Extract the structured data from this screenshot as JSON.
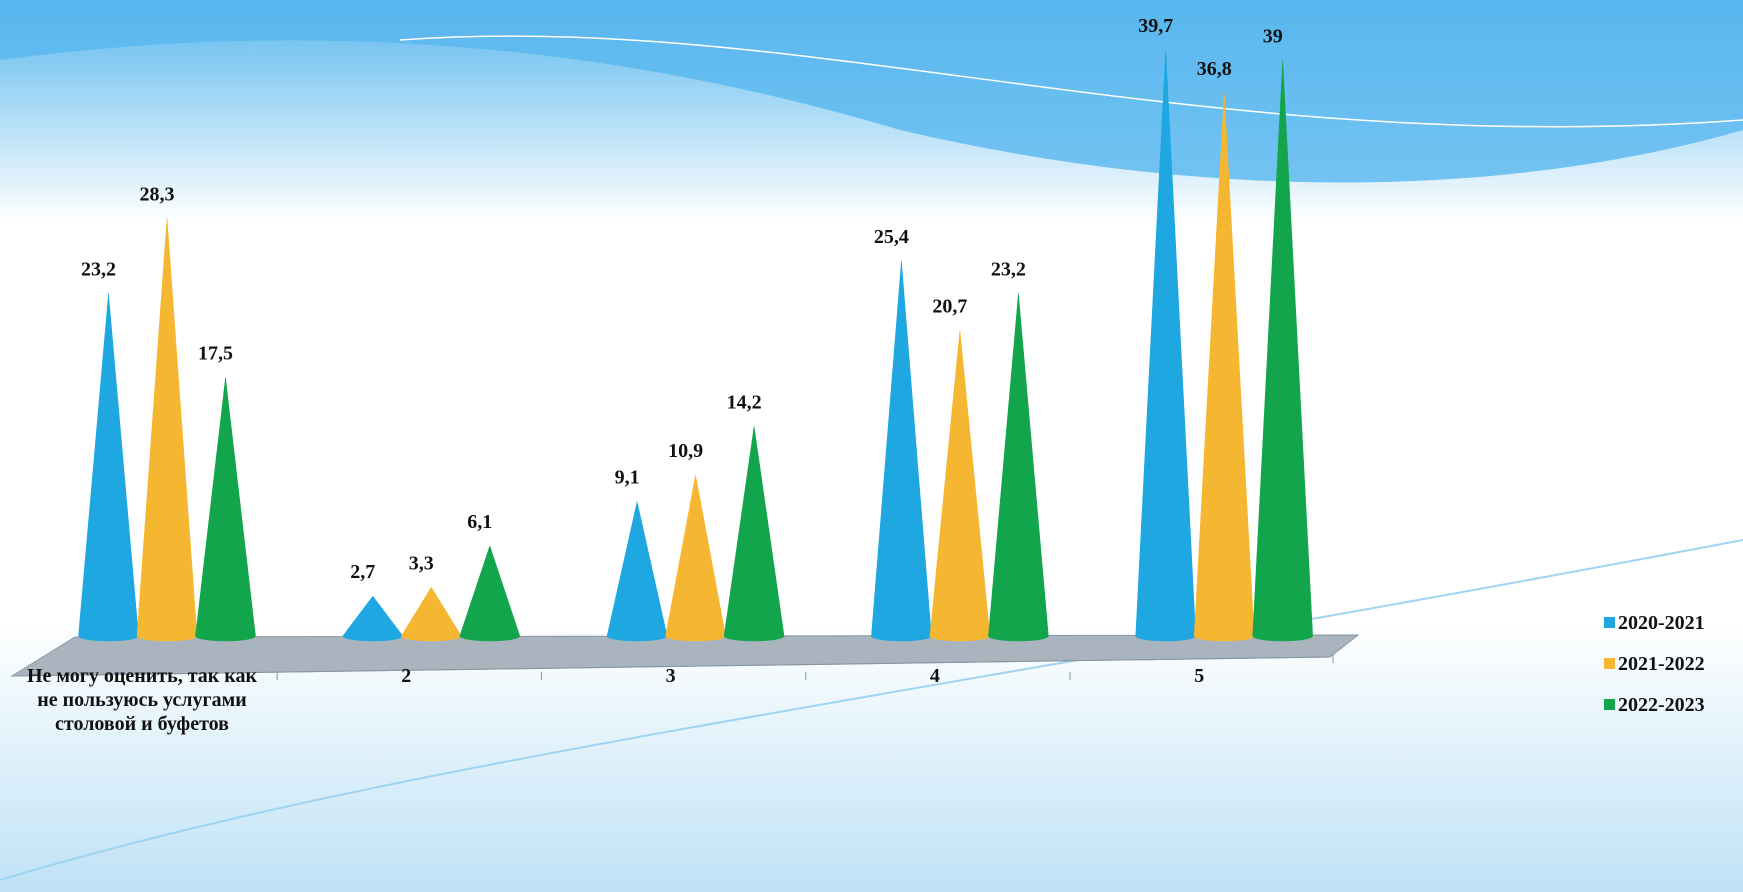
{
  "chart_data": {
    "type": "cone",
    "categories": [
      "Не могу оценить, так как не пользуюсь услугами столовой и буфетов",
      "2",
      "3",
      "4",
      "5"
    ],
    "series": [
      {
        "name": "2020-2021",
        "color": "#1ea7e0",
        "values": [
          23.2,
          2.7,
          9.1,
          25.4,
          39.7
        ],
        "value_labels": [
          "23,2",
          "2,7",
          "9,1",
          "25,4",
          "39,7"
        ]
      },
      {
        "name": "2021-2022",
        "color": "#f5b731",
        "values": [
          28.3,
          3.3,
          10.9,
          20.7,
          36.8
        ],
        "value_labels": [
          "28,3",
          "3,3",
          "10,9",
          "20,7",
          "36,8"
        ]
      },
      {
        "name": "2022-2023",
        "color": "#13a54c",
        "values": [
          17.5,
          6.1,
          14.2,
          23.2,
          39
        ],
        "value_labels": [
          "17,5",
          "6,1",
          "14,2",
          "23,2",
          "39"
        ]
      }
    ],
    "legend": "right"
  }
}
